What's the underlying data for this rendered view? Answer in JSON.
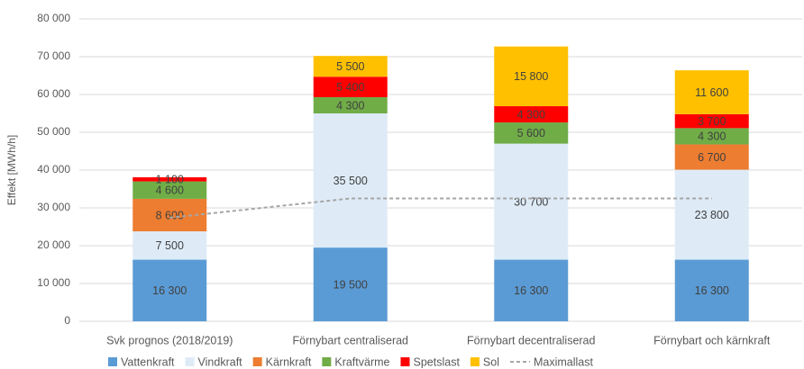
{
  "chart_data": {
    "type": "bar",
    "stacked": true,
    "y_label": "Effekt [MWh/h]",
    "categories": [
      "Svk prognos (2018/2019)",
      "Förnybart centraliserad",
      "Förnybart decentraliserad",
      "Förnybart och kärnkraft"
    ],
    "ylim": [
      0,
      80000
    ],
    "yticks": [
      0,
      {
        "value": 10000,
        "label": "10 000"
      },
      {
        "value": 20000,
        "label": "20 000"
      },
      {
        "value": 30000,
        "label": "30 000"
      },
      {
        "value": 40000,
        "label": "40 000"
      },
      {
        "value": 50000,
        "label": "50 000"
      },
      {
        "value": 60000,
        "label": "60 000"
      },
      {
        "value": 70000,
        "label": "70 000"
      },
      {
        "value": 80000,
        "label": "80 000"
      }
    ],
    "grid": true,
    "legend": "bottom",
    "series": [
      {
        "name": "Vattenkraft",
        "color": "#5b9bd5",
        "values": [
          16300,
          19500,
          16300,
          16300
        ],
        "value_labels": [
          "16 300",
          "19 500",
          "16 300",
          "16 300"
        ]
      },
      {
        "name": "Vindkraft",
        "color": "#deebf7",
        "values": [
          7500,
          35500,
          30700,
          23800
        ],
        "value_labels": [
          "7 500",
          "35 500",
          "30 700",
          "23 800"
        ]
      },
      {
        "name": "Kärnkraft",
        "color": "#ed7d31",
        "values": [
          8600,
          null,
          null,
          6700
        ],
        "value_labels": [
          "8 600",
          null,
          null,
          "6 700"
        ]
      },
      {
        "name": "Kraftvärme",
        "color": "#70ad47",
        "values": [
          4600,
          4300,
          5600,
          4300
        ],
        "value_labels": [
          "4 600",
          "4 300",
          "5 600",
          "4 300"
        ]
      },
      {
        "name": "Spetslast",
        "color": "#ff0000",
        "values": [
          1100,
          5400,
          4300,
          3700
        ],
        "value_labels": [
          "1 100",
          "5 400",
          "4 300",
          "3 700"
        ]
      },
      {
        "name": "Sol",
        "color": "#ffc000",
        "values": [
          null,
          5500,
          15800,
          11600
        ],
        "value_labels": [
          null,
          "5 500",
          "15 800",
          "11 600"
        ]
      },
      {
        "name": "Maximallast",
        "type": "line",
        "dashed": true,
        "color": "#a6a6a6",
        "values": [
          27400,
          32500,
          32500,
          32500
        ]
      }
    ]
  }
}
